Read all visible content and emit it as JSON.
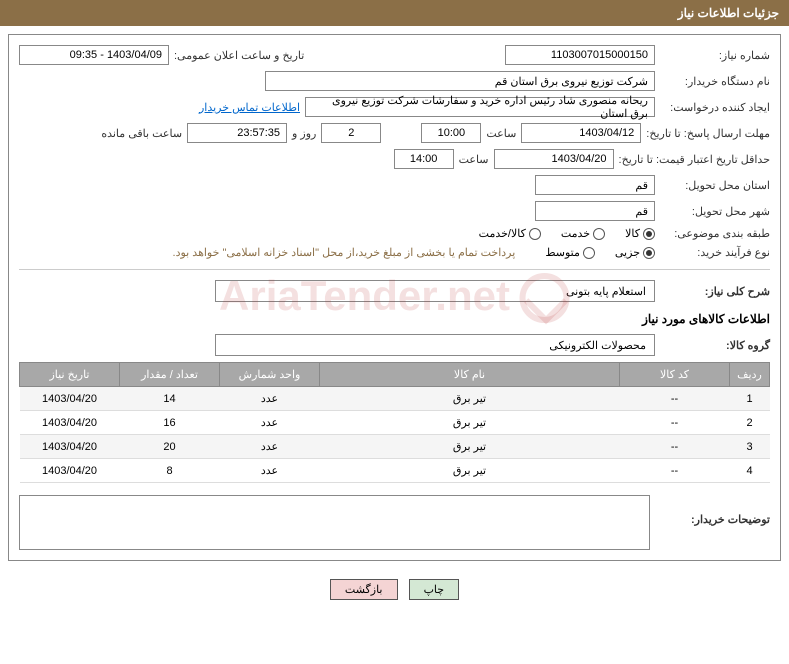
{
  "header": {
    "title": "جزئیات اطلاعات نیاز"
  },
  "fields": {
    "needNumberLabel": "شماره نیاز:",
    "needNumber": "1103007015000150",
    "announceDateLabel": "تاریخ و ساعت اعلان عمومی:",
    "announceDate": "1403/04/09 - 09:35",
    "buyerOrgLabel": "نام دستگاه خریدار:",
    "buyerOrg": "شرکت توزیع نیروی برق استان قم",
    "requesterLabel": "ایجاد کننده درخواست:",
    "requester": "ریحانه منصوری شاد رئیس اداره خرید و سفارشات شرکت توزیع نیروی برق استان",
    "contactLink": "اطلاعات تماس خریدار",
    "responseDeadlineLabel": "مهلت ارسال پاسخ: تا تاریخ:",
    "responseDate": "1403/04/12",
    "timeLabel": "ساعت",
    "responseTime": "10:00",
    "remainingDays": "2",
    "daysLabel": "روز و",
    "remainingTime": "23:57:35",
    "remainingLabel": "ساعت باقی مانده",
    "validityLabel": "حداقل تاریخ اعتبار قیمت: تا تاریخ:",
    "validityDate": "1403/04/20",
    "validityTime": "14:00",
    "provinceLabel": "استان محل تحویل:",
    "province": "قم",
    "cityLabel": "شهر محل تحویل:",
    "city": "قم",
    "categoryLabel": "طبقه بندی موضوعی:",
    "purchaseTypeLabel": "نوع فرآیند خرید:",
    "paymentNote": "پرداخت تمام یا بخشی از مبلغ خرید،از محل \"اسناد خزانه اسلامی\" خواهد بود."
  },
  "radios": {
    "category": {
      "goods": "کالا",
      "service": "خدمت",
      "goodsService": "کالا/خدمت"
    },
    "purchaseType": {
      "partial": "جزیی",
      "medium": "متوسط"
    }
  },
  "description": {
    "titleLabel": "شرح کلی نیاز:",
    "title": "استعلام پایه بتونی",
    "itemsLabel": "اطلاعات کالاهای مورد نیاز",
    "groupLabel": "گروه کالا:",
    "group": "محصولات الکترونیکی"
  },
  "table": {
    "headers": {
      "row": "ردیف",
      "code": "کد کالا",
      "name": "نام کالا",
      "unit": "واحد شمارش",
      "qty": "تعداد / مقدار",
      "date": "تاریخ نیاز"
    },
    "rows": [
      {
        "n": "1",
        "code": "--",
        "name": "تیر برق",
        "unit": "عدد",
        "qty": "14",
        "date": "1403/04/20"
      },
      {
        "n": "2",
        "code": "--",
        "name": "تیر برق",
        "unit": "عدد",
        "qty": "16",
        "date": "1403/04/20"
      },
      {
        "n": "3",
        "code": "--",
        "name": "تیر برق",
        "unit": "عدد",
        "qty": "20",
        "date": "1403/04/20"
      },
      {
        "n": "4",
        "code": "--",
        "name": "تیر برق",
        "unit": "عدد",
        "qty": "8",
        "date": "1403/04/20"
      }
    ]
  },
  "comments": {
    "label": "توضیحات خریدار:"
  },
  "buttons": {
    "print": "چاپ",
    "back": "بازگشت"
  },
  "watermark": "AriaTender.net"
}
